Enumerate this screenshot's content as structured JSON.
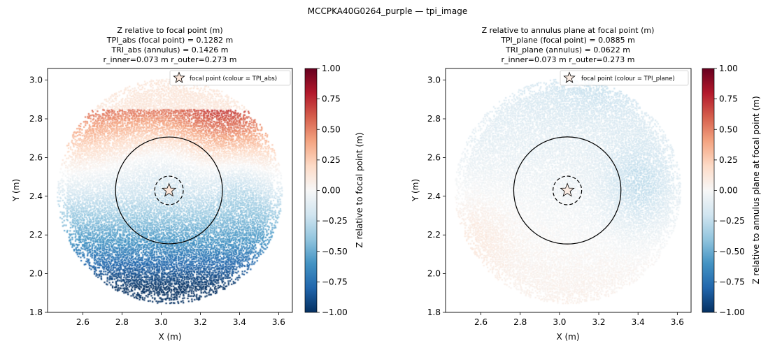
{
  "figure": {
    "suptitle": "MCCPKA40G0264_purple — tpi_image"
  },
  "colorbar": {
    "colormap": "RdBu_r",
    "ticks": [
      1.0,
      0.75,
      0.5,
      0.25,
      0.0,
      -0.25,
      -0.5,
      -0.75,
      -1.0
    ],
    "tick_labels": [
      "1.00",
      "0.75",
      "0.50",
      "0.25",
      "0.00",
      "−0.25",
      "−0.50",
      "−0.75",
      "−1.00"
    ]
  },
  "chart_data": [
    {
      "type": "scatter",
      "title_lines": [
        "Z relative to focal point (m)",
        "TPI_abs (focal point) = 0.1282 m",
        "TRI_abs (annulus) = 0.1426 m",
        "r_inner=0.073 m  r_outer=0.273 m"
      ],
      "xlabel": "X (m)",
      "ylabel": "Y (m)",
      "colorbar_label": "Z relative to focal point (m)",
      "legend": "focal point (colour = TPI_abs)",
      "legend_position": "top-right",
      "xlim": [
        2.42,
        3.67
      ],
      "ylim": [
        1.8,
        3.06
      ],
      "xticks": [
        2.6,
        2.8,
        3.0,
        3.2,
        3.4,
        3.6
      ],
      "xtick_labels": [
        "2.6",
        "2.8",
        "3.0",
        "3.2",
        "3.4",
        "3.6"
      ],
      "yticks": [
        1.8,
        2.0,
        2.2,
        2.4,
        2.6,
        2.8,
        3.0
      ],
      "ytick_labels": [
        "1.8",
        "2.0",
        "2.2",
        "2.4",
        "2.6",
        "2.8",
        "3.0"
      ],
      "clim": [
        -1.0,
        1.0
      ],
      "focal_point": {
        "x": 3.04,
        "y": 2.43,
        "value": 0.1282
      },
      "r_inner": 0.073,
      "r_outer": 0.273,
      "cloud": {
        "center": [
          3.04,
          2.43
        ],
        "radius": 0.575
      },
      "field": {
        "type": "abs"
      },
      "grid": false
    },
    {
      "type": "scatter",
      "title_lines": [
        "Z relative to annulus plane at focal point (m)",
        "TPI_plane (focal point) = 0.0885 m",
        "TRI_plane (annulus) = 0.0622 m",
        "r_inner=0.073 m  r_outer=0.273 m"
      ],
      "xlabel": "X (m)",
      "ylabel": "Y (m)",
      "colorbar_label": "Z relative to annulus plane at focal point (m)",
      "legend": "focal point (colour = TPI_plane)",
      "legend_position": "top-right",
      "xlim": [
        2.42,
        3.67
      ],
      "ylim": [
        1.8,
        3.06
      ],
      "xticks": [
        2.6,
        2.8,
        3.0,
        3.2,
        3.4,
        3.6
      ],
      "xtick_labels": [
        "2.6",
        "2.8",
        "3.0",
        "3.2",
        "3.4",
        "3.6"
      ],
      "yticks": [
        1.8,
        2.0,
        2.2,
        2.4,
        2.6,
        2.8,
        3.0
      ],
      "ytick_labels": [
        "1.8",
        "2.0",
        "2.2",
        "2.4",
        "2.6",
        "2.8",
        "3.0"
      ],
      "clim": [
        -1.0,
        1.0
      ],
      "focal_point": {
        "x": 3.04,
        "y": 2.43,
        "value": 0.0885
      },
      "r_inner": 0.073,
      "r_outer": 0.273,
      "cloud": {
        "center": [
          3.04,
          2.43
        ],
        "radius": 0.575
      },
      "field": {
        "type": "plane"
      },
      "grid": false
    }
  ]
}
